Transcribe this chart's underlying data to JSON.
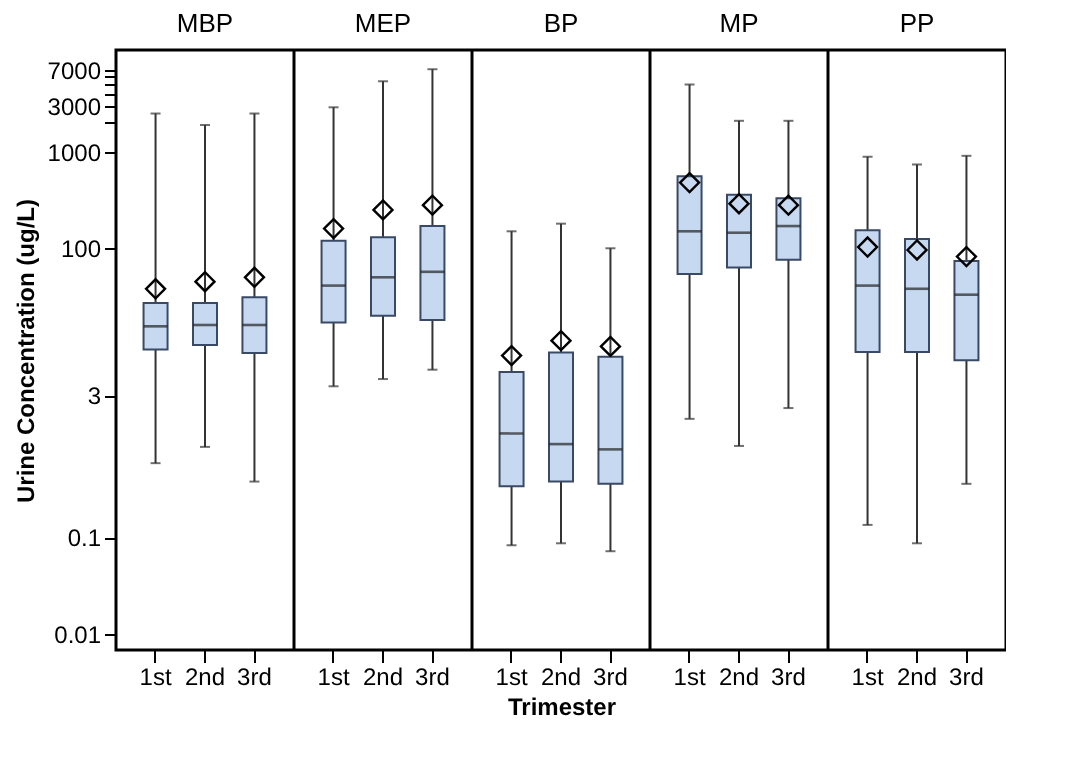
{
  "chart_data": [
    {
      "type": "box",
      "title": "MBP",
      "ylabel": "Urine Concentration (ug/L)",
      "categories": [
        "1st",
        "2nd",
        "3rd"
      ],
      "log": true,
      "ylim": [
        0.0068,
        11400
      ],
      "yticks": [
        0.01,
        0.1,
        3,
        100,
        1000,
        {
          "value": 2000,
          "label": null
        },
        3000,
        {
          "value": 4000,
          "label": null
        },
        {
          "value": 5000,
          "label": null
        },
        {
          "value": 6000,
          "label": null
        },
        7000
      ],
      "series": [
        {
          "color": "#c6d9f0",
          "boxes": [
            {
              "low": 0.59,
              "q1": 8.9,
              "median": 15.5,
              "q3": 27,
              "high": 2500,
              "mean": 38
            },
            {
              "low": 0.87,
              "q1": 9.9,
              "median": 16,
              "q3": 27,
              "high": 1900,
              "mean": 45
            },
            {
              "low": 0.38,
              "q1": 8.2,
              "median": 16,
              "q3": 31,
              "high": 2500,
              "mean": 50
            }
          ]
        }
      ]
    },
    {
      "type": "box",
      "title": "MEP",
      "categories": [
        "1st",
        "2nd",
        "3rd"
      ],
      "log": true,
      "ylim": [
        0.0068,
        11400
      ],
      "tick_labels": "x",
      "series": [
        {
          "color": "#c6d9f0",
          "boxes": [
            {
              "low": 3.7,
              "q1": 17,
              "median": 41,
              "q3": 120,
              "high": 2900,
              "mean": 160
            },
            {
              "low": 4.4,
              "q1": 20,
              "median": 50,
              "q3": 130,
              "high": 5400,
              "mean": 250
            },
            {
              "low": 5.5,
              "q1": 18,
              "median": 57,
              "q3": 170,
              "high": 7200,
              "mean": 280
            }
          ]
        }
      ]
    },
    {
      "type": "box",
      "title": "BP",
      "xlabel": "Trimester",
      "categories": [
        "1st",
        "2nd",
        "3rd"
      ],
      "log": true,
      "ylim": [
        0.0068,
        11400
      ],
      "tick_labels": "x",
      "series": [
        {
          "color": "#c6d9f0",
          "boxes": [
            {
              "low": 0.083,
              "q1": 0.34,
              "median": 1.2,
              "q3": 5.2,
              "high": 150,
              "mean": 7.7
            },
            {
              "low": 0.087,
              "q1": 0.38,
              "median": 0.93,
              "q3": 8.3,
              "high": 180,
              "mean": 11
            },
            {
              "low": 0.072,
              "q1": 0.36,
              "median": 0.82,
              "q3": 7.5,
              "high": 100,
              "mean": 9.6
            }
          ]
        }
      ]
    },
    {
      "type": "box",
      "title": "MP",
      "categories": [
        "1st",
        "2nd",
        "3rd"
      ],
      "log": true,
      "ylim": [
        0.0068,
        11400
      ],
      "tick_labels": "x",
      "series": [
        {
          "color": "#c6d9f0",
          "boxes": [
            {
              "low": 1.7,
              "q1": 54,
              "median": 150,
              "q3": 560,
              "high": 5000,
              "mean": 480
            },
            {
              "low": 0.89,
              "q1": 63,
              "median": 145,
              "q3": 360,
              "high": 2100,
              "mean": 290
            },
            {
              "low": 2.2,
              "q1": 76,
              "median": 170,
              "q3": 330,
              "high": 2100,
              "mean": 280
            }
          ]
        }
      ]
    },
    {
      "type": "box",
      "title": "PP",
      "categories": [
        "1st",
        "2nd",
        "3rd"
      ],
      "log": true,
      "ylim": [
        0.0068,
        11400
      ],
      "tick_labels": "x",
      "series": [
        {
          "color": "#c6d9f0",
          "boxes": [
            {
              "low": 0.135,
              "q1": 8.4,
              "median": 41,
              "q3": 154,
              "high": 890,
              "mean": 103
            },
            {
              "low": 0.087,
              "q1": 8.4,
              "median": 38,
              "q3": 125,
              "high": 740,
              "mean": 96
            },
            {
              "low": 0.36,
              "q1": 6.9,
              "median": 33,
              "q3": 74,
              "high": 910,
              "mean": 82
            }
          ]
        }
      ]
    }
  ]
}
